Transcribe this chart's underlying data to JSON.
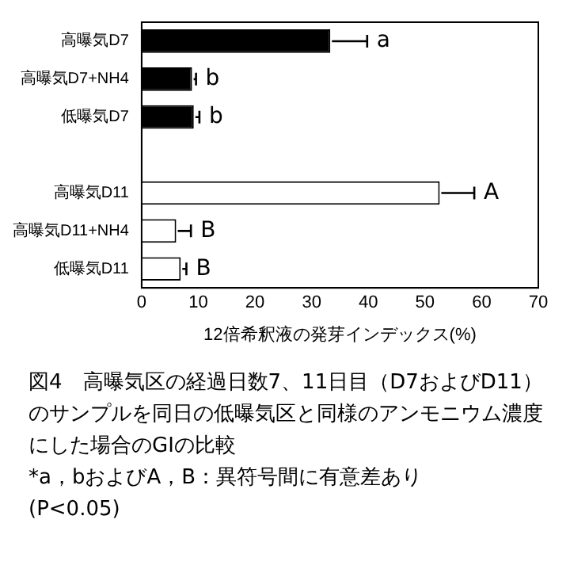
{
  "chart_data": {
    "type": "bar",
    "orientation": "horizontal",
    "xlabel": "12倍希釈液の発芽インデックス(%)",
    "categories": [
      "高曝気D7",
      "高曝気D7+NH4",
      "低曝気D7",
      null,
      "高曝気D11",
      "高曝気D11+NH4",
      "低曝気D11"
    ],
    "values": [
      33.3,
      8.9,
      9.2,
      null,
      52.6,
      6.1,
      6.9
    ],
    "colors": [
      "#000000",
      "#000000",
      "#000000",
      null,
      "#ffffff",
      "#ffffff",
      "#ffffff"
    ],
    "errors": [
      [
        33.3,
        39.8
      ],
      [
        8.9,
        9.6
      ],
      [
        9.2,
        10.2
      ],
      null,
      [
        52.6,
        58.7
      ],
      [
        6.1,
        8.7
      ],
      [
        6.9,
        7.9
      ]
    ],
    "xlim": [
      0,
      70
    ],
    "xticks": [
      0,
      10,
      20,
      30,
      40,
      50,
      60,
      70
    ],
    "grid": false,
    "legend": false,
    "value_labels": [
      "a",
      "b",
      "b",
      null,
      "A",
      "B",
      "B"
    ],
    "annotations": [
      "図4　高曝気区の経過日数7、11日目（D7およびD11）のサンプルを同日の低曝気区と同様のアンモニウム濃度にした場合のGIの比較",
      "*a，bおよびA，B：異符号間に有意差あり",
      "(P<0.05)"
    ]
  }
}
